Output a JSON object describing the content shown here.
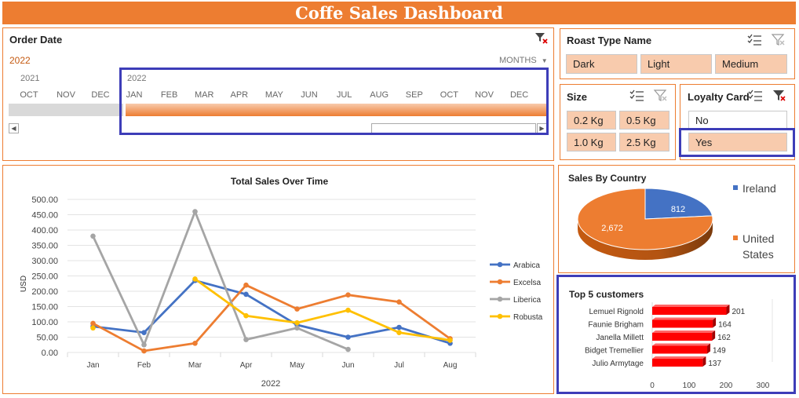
{
  "title": "Coffe Sales Dashboard",
  "order_date": {
    "title": "Order Date",
    "selected_year": "2022",
    "level": "MONTHS",
    "year_left": "2021",
    "year_right": "2022",
    "months_2021": [
      "OCT",
      "NOV",
      "DEC"
    ],
    "months_2022": [
      "JAN",
      "FEB",
      "MAR",
      "APR",
      "MAY",
      "JUN",
      "JUL",
      "AUG",
      "SEP",
      "OCT",
      "NOV",
      "DEC"
    ]
  },
  "roast": {
    "title": "Roast Type Name",
    "items": [
      "Dark",
      "Light",
      "Medium"
    ]
  },
  "size": {
    "title": "Size",
    "items": [
      "0.2 Kg",
      "0.5 Kg",
      "1.0 Kg",
      "2.5 Kg"
    ]
  },
  "loyalty": {
    "title": "Loyalty Card",
    "items": [
      "No",
      "Yes"
    ],
    "selected": "Yes"
  },
  "colors": {
    "accent": "#ed7d31",
    "selected": "#f8cbad",
    "highlight": "#3d3db8",
    "arabica": "#4472c4",
    "excelsa": "#ed7d31",
    "liberica": "#a5a5a5",
    "robusta": "#ffc000",
    "top5": "#ff0000"
  },
  "chart_data": [
    {
      "type": "line",
      "title": "Total Sales Over Time",
      "xlabel": "2022",
      "ylabel": "USD",
      "categories": [
        "Jan",
        "Feb",
        "Mar",
        "Apr",
        "May",
        "Jun",
        "Jul",
        "Aug"
      ],
      "ylim": [
        0,
        500
      ],
      "yticks": [
        "0.00",
        "50.00",
        "100.00",
        "150.00",
        "200.00",
        "250.00",
        "300.00",
        "350.00",
        "400.00",
        "450.00",
        "500.00"
      ],
      "legend": "right",
      "grid": true,
      "series": [
        {
          "name": "Arabica",
          "values": [
            85,
            65,
            235,
            190,
            90,
            50,
            82,
            30
          ]
        },
        {
          "name": "Excelsa",
          "values": [
            95,
            5,
            30,
            220,
            142,
            188,
            165,
            45
          ]
        },
        {
          "name": "Liberica",
          "values": [
            380,
            25,
            460,
            42,
            80,
            10,
            null,
            null
          ]
        },
        {
          "name": "Robusta",
          "values": [
            80,
            null,
            240,
            120,
            97,
            138,
            65,
            40
          ]
        }
      ]
    },
    {
      "type": "pie",
      "title": "Sales By Country",
      "categories": [
        "Ireland",
        "United States"
      ],
      "values": [
        812,
        2672
      ],
      "labels": [
        "812",
        "2,672"
      ],
      "legend": "right"
    },
    {
      "type": "bar",
      "title": "Top 5 customers",
      "categories": [
        "Lemuel Rignold",
        "Faunie Brigham",
        "Janella Millett",
        "Bidget Tremellier",
        "Julio Armytage"
      ],
      "values": [
        201,
        164,
        162,
        149,
        137
      ],
      "xlim": [
        0,
        300
      ],
      "xticks": [
        "0",
        "100",
        "200",
        "300"
      ]
    }
  ]
}
